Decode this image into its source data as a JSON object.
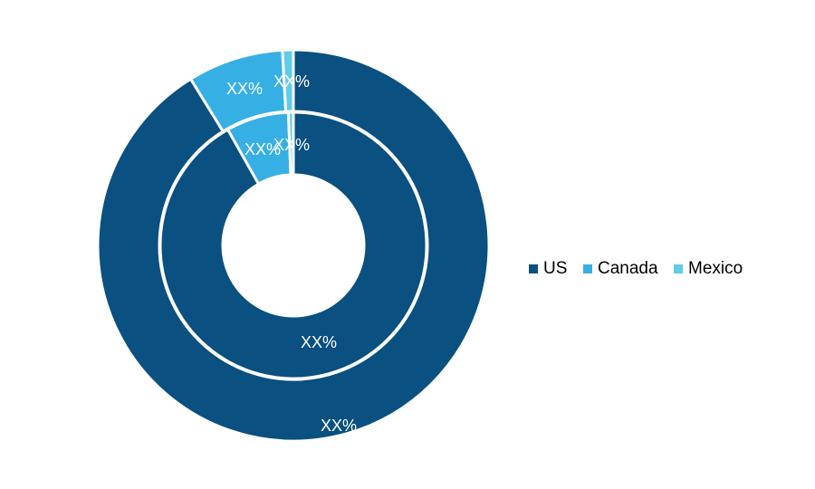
{
  "chart_data": {
    "type": "pie",
    "subtype": "double-donut",
    "categories": [
      "US",
      "Canada",
      "Mexico"
    ],
    "colors": {
      "US": "#0a5080",
      "Canada": "#36b0e4",
      "Mexico": "#5fcde8"
    },
    "series": [
      {
        "ring": "outer",
        "values": [
          91.2,
          7.9,
          0.9
        ],
        "labels": [
          "XX%",
          "XX%",
          "XX%"
        ]
      },
      {
        "ring": "inner",
        "values": [
          91.8,
          7.6,
          0.6
        ],
        "labels": [
          "XX%",
          "XX%",
          "XX%"
        ]
      }
    ],
    "legend": {
      "position": "right",
      "entries": [
        "US",
        "Canada",
        "Mexico"
      ]
    }
  }
}
